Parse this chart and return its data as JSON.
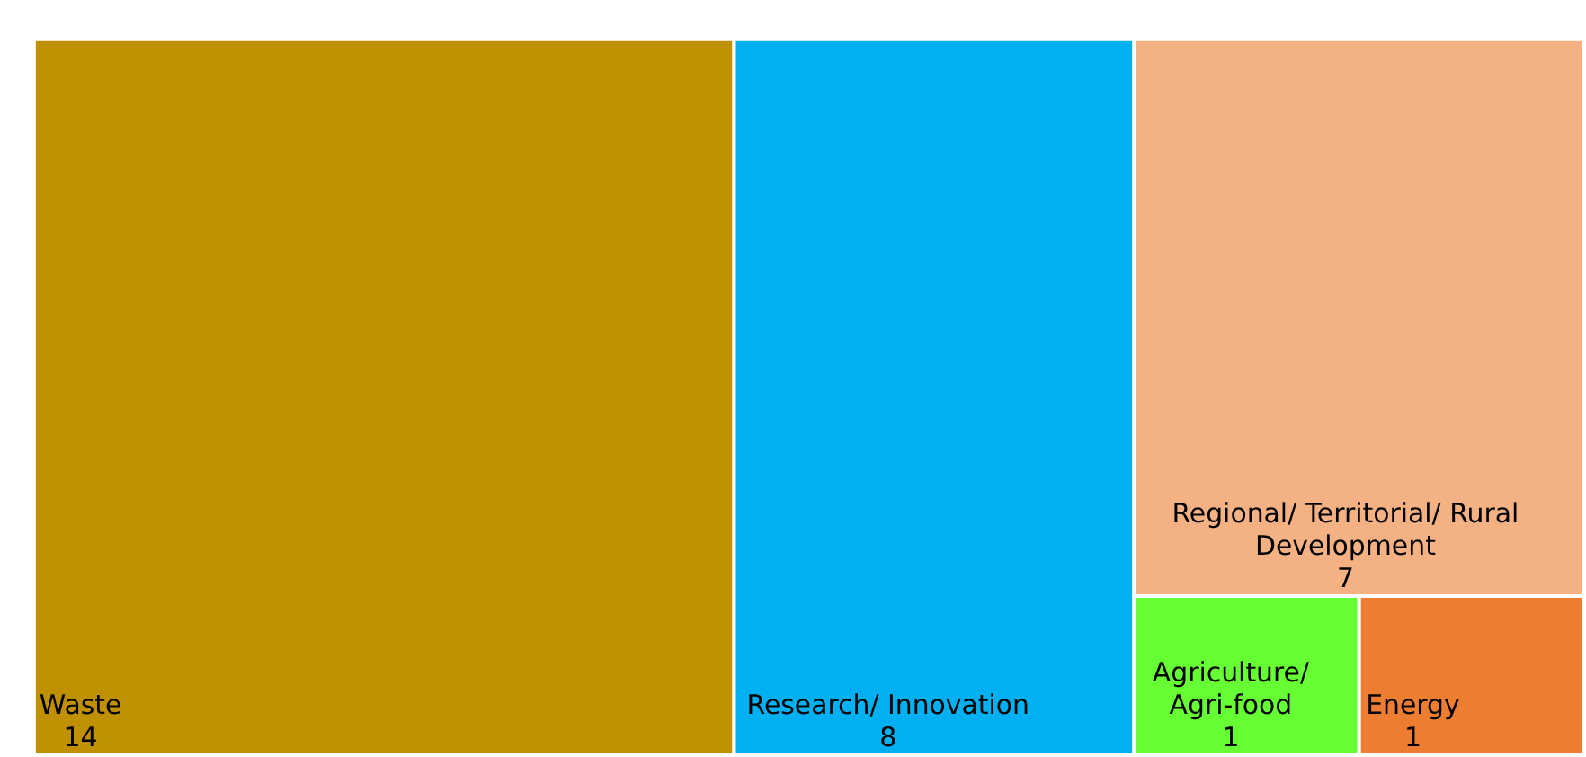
{
  "chart_data": {
    "type": "other",
    "categories": [
      "Waste",
      "Research/ Innovation",
      "Regional/ Territorial/ Rural Development",
      "Agriculture/ Agri-food",
      "Energy"
    ],
    "values": [
      14,
      8,
      7,
      1,
      1
    ],
    "colors": [
      "#bf9000",
      "#00b0f0",
      "#f4b183",
      "#66ff33",
      "#ed7d31"
    ],
    "data_labels": true
  }
}
